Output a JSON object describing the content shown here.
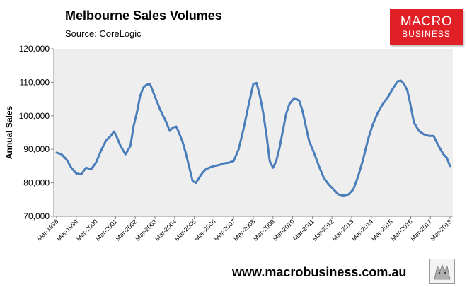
{
  "header": {
    "title": "Melbourne Sales Volumes",
    "source": "Source: CoreLogic"
  },
  "logo": {
    "line1": "MACRO",
    "line2": "BUSINESS"
  },
  "footer": {
    "url": "www.macrobusiness.com.au"
  },
  "colors": {
    "series": "#4a7ebb",
    "plot_bg": "#eeeeee",
    "logo_red": "#e01f26"
  },
  "chart_data": {
    "type": "line",
    "title": "Melbourne Sales Volumes",
    "ylabel": "Annual Sales",
    "xlabel": "",
    "ylim": [
      70000,
      120000
    ],
    "yticks": [
      70000,
      80000,
      90000,
      100000,
      110000,
      120000
    ],
    "ytick_labels": [
      "70,000",
      "80,000",
      "90,000",
      "100,000",
      "110,000",
      "120,000"
    ],
    "grid": false,
    "x_start": "Mar-1998",
    "x_end": "Mar-2018",
    "xtick_labels": [
      "Mar-1998",
      "Mar-1999",
      "Mar-2000",
      "Mar-2001",
      "Mar-2002",
      "Mar-2003",
      "Mar-2004",
      "Mar-2005",
      "Mar-2006",
      "Mar-2007",
      "Mar-2008",
      "Mar-2009",
      "Mar-2010",
      "Mar-2011",
      "Mar-2012",
      "Mar-2013",
      "Mar-2014",
      "Mar-2015",
      "Mar-2016",
      "Mar-2017",
      "Mar-2018"
    ],
    "series": [
      {
        "name": "",
        "points": [
          [
            "Mar-1998",
            89000
          ],
          [
            "Jun-1998",
            88500
          ],
          [
            "Sep-1998",
            87000
          ],
          [
            "Dec-1998",
            84500
          ],
          [
            "Mar-1999",
            82800
          ],
          [
            "Jun-1999",
            82500
          ],
          [
            "Sep-1999",
            84500
          ],
          [
            "Dec-1999",
            84000
          ],
          [
            "Mar-2000",
            86000
          ],
          [
            "Jun-2000",
            89500
          ],
          [
            "Sep-2000",
            92500
          ],
          [
            "Dec-2000",
            94000
          ],
          [
            "Feb-2001",
            95300
          ],
          [
            "Mar-2001",
            94500
          ],
          [
            "Jun-2001",
            91000
          ],
          [
            "Sep-2001",
            88500
          ],
          [
            "Dec-2001",
            91000
          ],
          [
            "Feb-2002",
            97000
          ],
          [
            "Apr-2002",
            101000
          ],
          [
            "Jun-2002",
            106000
          ],
          [
            "Aug-2002",
            108500
          ],
          [
            "Oct-2002",
            109300
          ],
          [
            "Dec-2002",
            109500
          ],
          [
            "Feb-2003",
            107000
          ],
          [
            "Apr-2003",
            104500
          ],
          [
            "Jun-2003",
            102000
          ],
          [
            "Aug-2003",
            100000
          ],
          [
            "Oct-2003",
            98000
          ],
          [
            "Dec-2003",
            95500
          ],
          [
            "Feb-2004",
            96500
          ],
          [
            "Apr-2004",
            96800
          ],
          [
            "Jun-2004",
            94500
          ],
          [
            "Aug-2004",
            92000
          ],
          [
            "Oct-2004",
            88500
          ],
          [
            "Dec-2004",
            84500
          ],
          [
            "Feb-2005",
            80500
          ],
          [
            "Apr-2005",
            80000
          ],
          [
            "Jun-2005",
            81500
          ],
          [
            "Aug-2005",
            83000
          ],
          [
            "Oct-2005",
            84000
          ],
          [
            "Dec-2005",
            84500
          ],
          [
            "Mar-2006",
            85000
          ],
          [
            "Jun-2006",
            85300
          ],
          [
            "Sep-2006",
            85800
          ],
          [
            "Dec-2006",
            86000
          ],
          [
            "Mar-2007",
            86500
          ],
          [
            "Jun-2007",
            90000
          ],
          [
            "Sep-2007",
            96000
          ],
          [
            "Dec-2007",
            103000
          ],
          [
            "Mar-2008",
            109500
          ],
          [
            "May-2008",
            109800
          ],
          [
            "Jul-2008",
            106000
          ],
          [
            "Sep-2008",
            101000
          ],
          [
            "Nov-2008",
            94500
          ],
          [
            "Jan-2009",
            86500
          ],
          [
            "Mar-2009",
            84500
          ],
          [
            "May-2009",
            86500
          ],
          [
            "Jul-2009",
            90500
          ],
          [
            "Sep-2009",
            95500
          ],
          [
            "Nov-2009",
            100500
          ],
          [
            "Jan-2010",
            103500
          ],
          [
            "Apr-2010",
            105300
          ],
          [
            "Jul-2010",
            104500
          ],
          [
            "Sep-2010",
            101500
          ],
          [
            "Nov-2010",
            97000
          ],
          [
            "Jan-2011",
            92500
          ],
          [
            "Apr-2011",
            89000
          ],
          [
            "Jul-2011",
            85000
          ],
          [
            "Oct-2011",
            81500
          ],
          [
            "Jan-2012",
            79500
          ],
          [
            "Apr-2012",
            78000
          ],
          [
            "Jul-2012",
            76500
          ],
          [
            "Oct-2012",
            76200
          ],
          [
            "Jan-2013",
            76500
          ],
          [
            "Apr-2013",
            78000
          ],
          [
            "Jul-2013",
            82000
          ],
          [
            "Oct-2013",
            87000
          ],
          [
            "Jan-2014",
            93000
          ],
          [
            "Apr-2014",
            97500
          ],
          [
            "Jul-2014",
            101000
          ],
          [
            "Oct-2014",
            103500
          ],
          [
            "Jan-2015",
            105500
          ],
          [
            "Apr-2015",
            108000
          ],
          [
            "Jul-2015",
            110300
          ],
          [
            "Sep-2015",
            110500
          ],
          [
            "Nov-2015",
            109500
          ],
          [
            "Jan-2016",
            107500
          ],
          [
            "Mar-2016",
            103000
          ],
          [
            "May-2016",
            98000
          ],
          [
            "Aug-2016",
            95500
          ],
          [
            "Nov-2016",
            94500
          ],
          [
            "Feb-2017",
            94000
          ],
          [
            "May-2017",
            94000
          ],
          [
            "Aug-2017",
            91000
          ],
          [
            "Nov-2017",
            88500
          ],
          [
            "Jan-2018",
            87500
          ],
          [
            "Mar-2018",
            85000
          ]
        ]
      }
    ]
  }
}
